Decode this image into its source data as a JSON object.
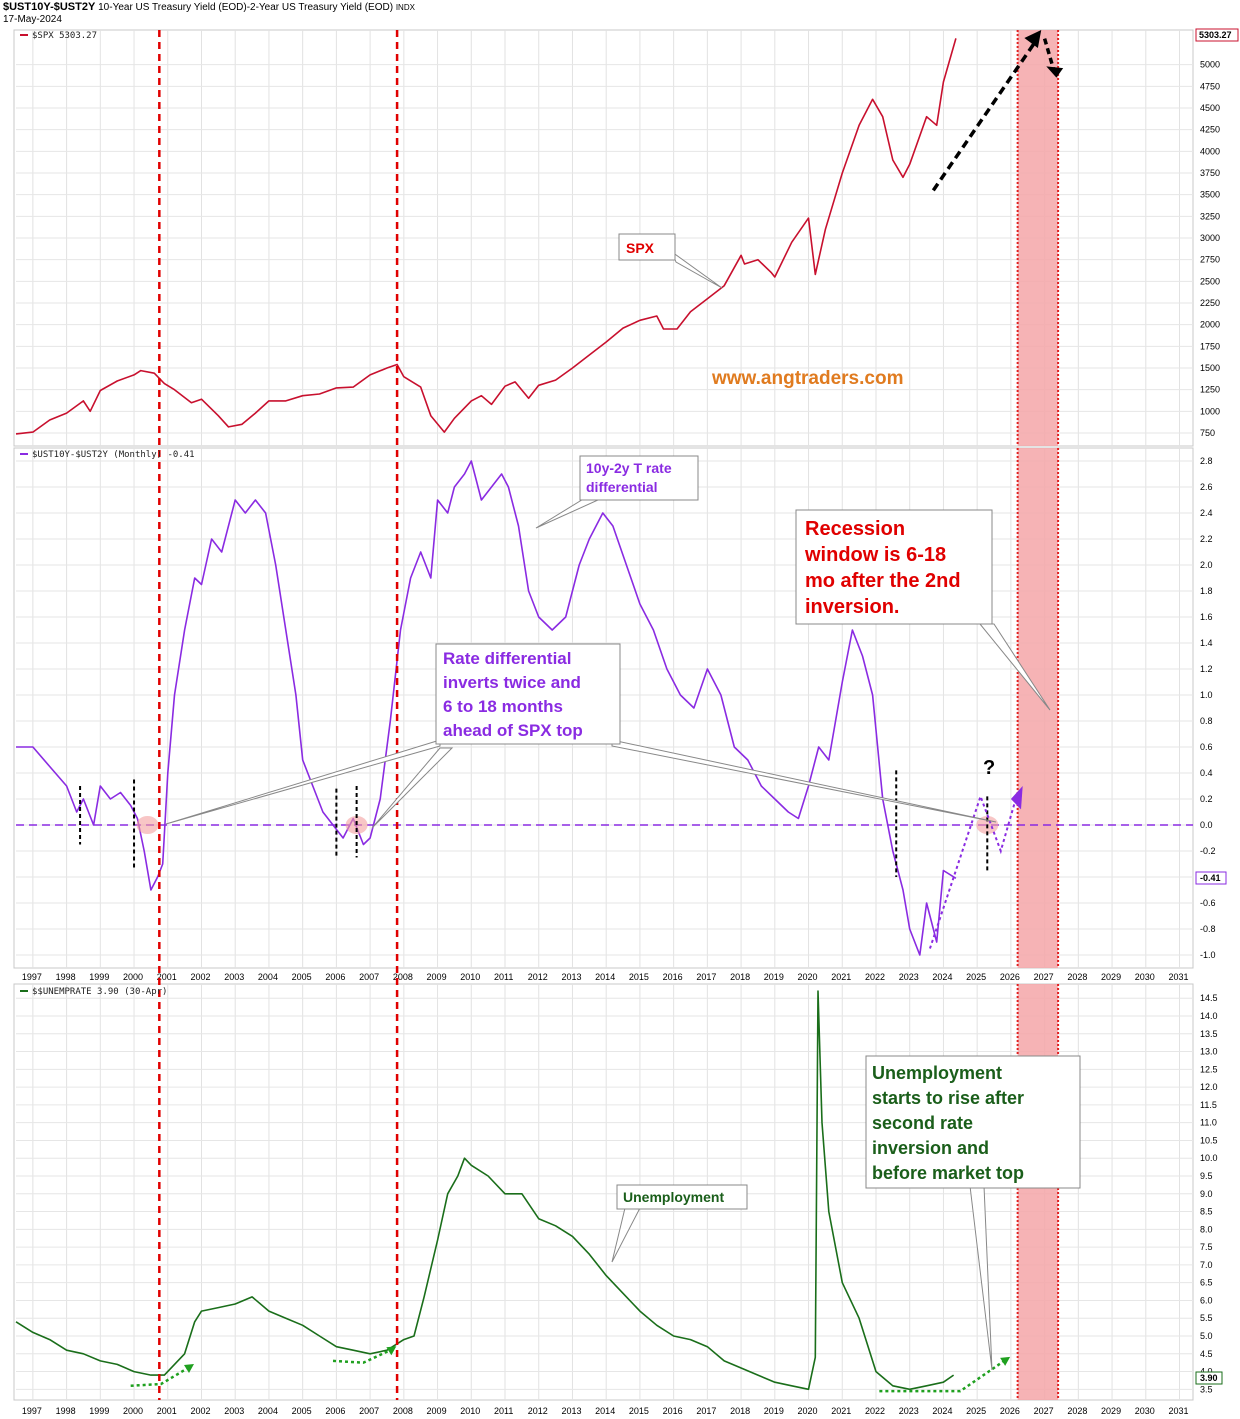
{
  "header": {
    "symbol": "$UST10Y-$UST2Y",
    "description": "10-Year US Treasury Yield (EOD)-2-Year US Treasury Yield (EOD)",
    "exchange": "INDX",
    "date": "17-May-2024"
  },
  "colors": {
    "spx": "#c8102e",
    "spread": "#8a2be2",
    "unemp": "#1a6e1a",
    "recession_window": "#f4a6a8",
    "recession_border": "#e02020",
    "top_marker": "#e00000",
    "zero_line": "#8a2be2",
    "arrow": "#000000",
    "green_arrow": "#1fa01f",
    "watermark": "#e07b1f"
  },
  "chart_data": [
    {
      "type": "line",
      "panel": "spx",
      "legend": "$SPX 5303.27",
      "last_value_label": "5303.27",
      "yticks": [
        "750",
        "1000",
        "1250",
        "1500",
        "1750",
        "2000",
        "2250",
        "2500",
        "2750",
        "3000",
        "3250",
        "3500",
        "3750",
        "4000",
        "4250",
        "4500",
        "4750",
        "5000"
      ],
      "ylim": [
        600,
        5400
      ],
      "series": [
        {
          "name": "SPX",
          "x": [
            1996.5,
            1997.0,
            1997.5,
            1998.0,
            1998.5,
            1998.7,
            1999.0,
            1999.5,
            2000.0,
            2000.2,
            2000.6,
            2000.9,
            2001.2,
            2001.7,
            2002.0,
            2002.5,
            2002.8,
            2003.2,
            2003.6,
            2004.0,
            2004.5,
            2005.0,
            2005.5,
            2006.0,
            2006.5,
            2007.0,
            2007.5,
            2007.8,
            2008.0,
            2008.5,
            2008.8,
            2009.2,
            2009.5,
            2010.0,
            2010.3,
            2010.6,
            2011.0,
            2011.3,
            2011.7,
            2012.0,
            2012.5,
            2013.0,
            2013.5,
            2014.0,
            2014.5,
            2015.0,
            2015.5,
            2015.7,
            2016.1,
            2016.5,
            2017.0,
            2017.5,
            2018.0,
            2018.1,
            2018.5,
            2018.9,
            2019.0,
            2019.5,
            2020.0,
            2020.2,
            2020.5,
            2021.0,
            2021.5,
            2021.9,
            2022.2,
            2022.5,
            2022.8,
            2023.0,
            2023.5,
            2023.8,
            2024.0,
            2024.37
          ],
          "values": [
            740,
            760,
            900,
            980,
            1120,
            1000,
            1240,
            1350,
            1420,
            1470,
            1440,
            1320,
            1250,
            1100,
            1140,
            950,
            820,
            850,
            980,
            1120,
            1120,
            1180,
            1200,
            1270,
            1280,
            1420,
            1500,
            1540,
            1400,
            1280,
            950,
            760,
            920,
            1120,
            1180,
            1080,
            1290,
            1340,
            1150,
            1300,
            1360,
            1500,
            1650,
            1800,
            1960,
            2050,
            2100,
            1950,
            1950,
            2150,
            2300,
            2450,
            2800,
            2700,
            2750,
            2600,
            2550,
            2950,
            3230,
            2580,
            3100,
            3750,
            4300,
            4600,
            4400,
            3900,
            3700,
            3850,
            4400,
            4300,
            4800,
            5303
          ]
        }
      ]
    },
    {
      "type": "line",
      "panel": "spread",
      "legend": "$UST10Y-$UST2Y (Monthly) -0.41",
      "last_value_label": "-0.41",
      "yticks": [
        "-1.0",
        "-0.8",
        "-0.6",
        "-0.4",
        "-0.2",
        "0.0",
        "0.2",
        "0.4",
        "0.6",
        "0.8",
        "1.0",
        "1.2",
        "1.4",
        "1.6",
        "1.8",
        "2.0",
        "2.2",
        "2.4",
        "2.6",
        "2.8"
      ],
      "ylim": [
        -1.1,
        2.9
      ],
      "series": [
        {
          "name": "10y-2y T rate differential",
          "x": [
            1996.5,
            1997.0,
            1997.5,
            1998.0,
            1998.3,
            1998.5,
            1998.8,
            1999.0,
            1999.3,
            1999.6,
            1999.9,
            2000.1,
            2000.3,
            2000.5,
            2000.7,
            2000.85,
            2001.0,
            2001.2,
            2001.5,
            2001.8,
            2002.0,
            2002.3,
            2002.6,
            2003.0,
            2003.3,
            2003.6,
            2003.9,
            2004.2,
            2004.5,
            2004.8,
            2005.0,
            2005.3,
            2005.6,
            2005.9,
            2006.2,
            2006.5,
            2006.8,
            2007.0,
            2007.3,
            2007.6,
            2007.9,
            2008.2,
            2008.5,
            2008.8,
            2009.0,
            2009.3,
            2009.5,
            2009.8,
            2010.0,
            2010.3,
            2010.6,
            2010.9,
            2011.1,
            2011.4,
            2011.7,
            2012.0,
            2012.4,
            2012.8,
            2013.2,
            2013.5,
            2013.9,
            2014.2,
            2014.6,
            2015.0,
            2015.4,
            2015.8,
            2016.2,
            2016.6,
            2017.0,
            2017.4,
            2017.8,
            2018.2,
            2018.6,
            2019.0,
            2019.4,
            2019.7,
            2020.0,
            2020.3,
            2020.6,
            2021.0,
            2021.3,
            2021.6,
            2021.9,
            2022.2,
            2022.5,
            2022.8,
            2023.0,
            2023.3,
            2023.5,
            2023.8,
            2024.0,
            2024.37
          ],
          "values": [
            0.6,
            0.6,
            0.45,
            0.3,
            0.1,
            0.2,
            0.0,
            0.3,
            0.2,
            0.25,
            0.15,
            0.05,
            -0.2,
            -0.5,
            -0.4,
            -0.3,
            0.4,
            1.0,
            1.5,
            1.9,
            1.85,
            2.2,
            2.1,
            2.5,
            2.4,
            2.5,
            2.4,
            2.0,
            1.5,
            1.0,
            0.5,
            0.3,
            0.1,
            0.0,
            -0.1,
            0.05,
            -0.15,
            -0.1,
            0.2,
            0.8,
            1.5,
            1.9,
            2.1,
            1.9,
            2.5,
            2.4,
            2.6,
            2.7,
            2.8,
            2.5,
            2.6,
            2.7,
            2.6,
            2.3,
            1.8,
            1.6,
            1.5,
            1.6,
            2.0,
            2.2,
            2.4,
            2.3,
            2.0,
            1.7,
            1.5,
            1.2,
            1.0,
            0.9,
            1.2,
            1.0,
            0.6,
            0.5,
            0.3,
            0.2,
            0.1,
            0.05,
            0.3,
            0.6,
            0.5,
            1.1,
            1.5,
            1.3,
            1.0,
            0.2,
            -0.2,
            -0.5,
            -0.8,
            -1.0,
            -0.6,
            -0.9,
            -0.35,
            -0.41
          ]
        }
      ],
      "zero_line": 0.0
    },
    {
      "type": "line",
      "panel": "unemployment",
      "legend": "$$UNEMPRATE 3.90 (30-Apr)",
      "last_value_label": "3.90",
      "yticks": [
        "3.5",
        "4.0",
        "4.5",
        "5.0",
        "5.5",
        "6.0",
        "6.5",
        "7.0",
        "7.5",
        "8.0",
        "8.5",
        "9.0",
        "9.5",
        "10.0",
        "10.5",
        "11.0",
        "11.5",
        "12.0",
        "12.5",
        "13.0",
        "13.5",
        "14.0",
        "14.5"
      ],
      "ylim": [
        3.2,
        14.9
      ],
      "series": [
        {
          "name": "Unemployment",
          "x": [
            1996.5,
            1997.0,
            1997.5,
            1998.0,
            1998.5,
            1999.0,
            1999.5,
            2000.0,
            2000.5,
            2000.9,
            2001.2,
            2001.5,
            2001.8,
            2002.0,
            2002.5,
            2003.0,
            2003.5,
            2004.0,
            2004.5,
            2005.0,
            2005.5,
            2006.0,
            2006.5,
            2007.0,
            2007.5,
            2008.0,
            2008.3,
            2008.6,
            2009.0,
            2009.3,
            2009.6,
            2009.8,
            2010.0,
            2010.5,
            2011.0,
            2011.5,
            2012.0,
            2012.5,
            2013.0,
            2013.5,
            2014.0,
            2014.5,
            2015.0,
            2015.5,
            2016.0,
            2016.5,
            2017.0,
            2017.5,
            2018.0,
            2018.5,
            2019.0,
            2019.5,
            2020.0,
            2020.2,
            2020.28,
            2020.4,
            2020.6,
            2021.0,
            2021.5,
            2022.0,
            2022.5,
            2023.0,
            2023.5,
            2024.0,
            2024.3
          ],
          "values": [
            5.4,
            5.1,
            4.9,
            4.6,
            4.5,
            4.3,
            4.2,
            4.0,
            3.9,
            3.9,
            4.2,
            4.5,
            5.4,
            5.7,
            5.8,
            5.9,
            6.1,
            5.7,
            5.5,
            5.3,
            5.0,
            4.7,
            4.6,
            4.5,
            4.6,
            4.9,
            5.0,
            6.1,
            7.7,
            9.0,
            9.5,
            10.0,
            9.8,
            9.5,
            9.0,
            9.0,
            8.3,
            8.1,
            7.8,
            7.3,
            6.7,
            6.2,
            5.7,
            5.3,
            5.0,
            4.9,
            4.7,
            4.3,
            4.1,
            3.9,
            3.7,
            3.6,
            3.5,
            4.4,
            14.7,
            11.0,
            8.5,
            6.5,
            5.5,
            4.0,
            3.6,
            3.5,
            3.6,
            3.7,
            3.9
          ]
        }
      ]
    }
  ],
  "x_axis_years": [
    "1997",
    "1998",
    "1999",
    "2000",
    "2001",
    "2002",
    "2003",
    "2004",
    "2005",
    "2006",
    "2007",
    "2008",
    "2009",
    "2010",
    "2011",
    "2012",
    "2013",
    "2014",
    "2015",
    "2016",
    "2017",
    "2018",
    "2019",
    "2020",
    "2021",
    "2022",
    "2023",
    "2024",
    "2025",
    "2026",
    "2027",
    "2028",
    "2029",
    "2030",
    "2031"
  ],
  "annotations": {
    "spx_label": "SPX",
    "watermark": "www.angtraders.com",
    "diff_label_1": "10y-2y T rate",
    "diff_label_2": "differential",
    "recession_1": "Recession",
    "recession_2": "window is  6-18",
    "recession_3": "mo after the 2nd",
    "recession_4": "inversion.",
    "inverts_1": "Rate differential",
    "inverts_2": "inverts twice and",
    "inverts_3": "6 to 18 months",
    "inverts_4": "ahead of SPX top",
    "question": "?",
    "unemp_label": "Unemployment",
    "rise_1": "Unemployment",
    "rise_2": "starts to rise after",
    "rise_3": "second rate",
    "rise_4": "inversion and",
    "rise_5": "before market top"
  }
}
